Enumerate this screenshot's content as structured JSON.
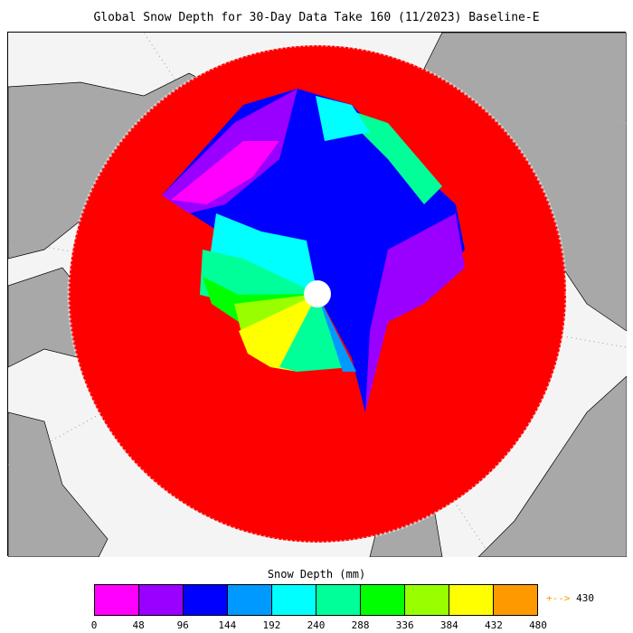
{
  "title": "Global Snow Depth for 30-Day Data Take 160 (11/2023) Baseline-E",
  "legend": {
    "title": "Snow Depth (mm)",
    "colors": [
      "#ff00ff",
      "#9900ff",
      "#0000ff",
      "#0099ff",
      "#00ffff",
      "#00ff99",
      "#00ff00",
      "#99ff00",
      "#ffff00",
      "#ff9900"
    ],
    "ticks": [
      "0",
      "48",
      "96",
      "144",
      "192",
      "240",
      "288",
      "336",
      "384",
      "432",
      "480"
    ],
    "max_marker": "+-->",
    "max_value": "430"
  },
  "map": {
    "projection": "north-polar-stereographic",
    "nodata_color": "#ff0000",
    "land_color": "#a8a8a8",
    "ocean_color": "#f4f4f4"
  }
}
